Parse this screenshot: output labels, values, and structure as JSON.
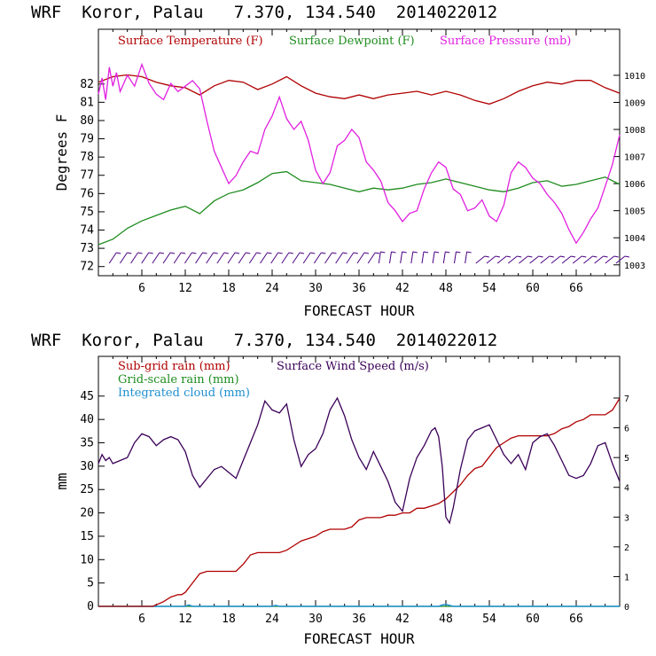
{
  "colors": {
    "temp": "#b00000",
    "dew": "#1e8c1e",
    "pres": "#e020e0",
    "subgrid": "#b00000",
    "gridscale": "#1e8c1e",
    "cloud": "#1f8fd0",
    "wind": "#3a0058",
    "barb": "#4b0082"
  },
  "chart_data": [
    {
      "type": "line",
      "header": "WRF  Koror, Palau   7.370, 134.540  2014022012",
      "xlabel": "FORECAST HOUR",
      "ylabel": "Degrees F",
      "xticks": [
        "6",
        "12",
        "18",
        "24",
        "30",
        "36",
        "42",
        "48",
        "54",
        "60",
        "66"
      ],
      "xlim": [
        0,
        72
      ],
      "yticks": [
        "72",
        "73",
        "74",
        "75",
        "76",
        "77",
        "78",
        "79",
        "80",
        "81",
        "82"
      ],
      "ylim": [
        71.5,
        85
      ],
      "y2ticks": [
        "1003",
        "1004",
        "1005",
        "1006",
        "1007",
        "1008",
        "1009",
        "1010"
      ],
      "y2lim": [
        1002.6,
        1011.7
      ],
      "legend": [
        "Surface Temperature (F)",
        "Surface Dewpoint (F)",
        "Surface Pressure (mb)"
      ],
      "series": [
        {
          "name": "Surface Temperature (F)",
          "x": [
            0,
            2,
            4,
            6,
            8,
            10,
            12,
            14,
            16,
            18,
            20,
            22,
            24,
            26,
            28,
            30,
            32,
            34,
            36,
            38,
            40,
            42,
            44,
            46,
            48,
            50,
            52,
            54,
            56,
            58,
            60,
            62,
            64,
            66,
            68,
            70,
            72
          ],
          "values": [
            82.1,
            82.4,
            82.5,
            82.4,
            82.1,
            81.9,
            81.8,
            81.4,
            81.9,
            82.2,
            82.1,
            81.7,
            82.0,
            82.4,
            81.9,
            81.5,
            81.3,
            81.2,
            81.4,
            81.2,
            81.4,
            81.5,
            81.6,
            81.4,
            81.6,
            81.4,
            81.1,
            80.9,
            81.2,
            81.6,
            81.9,
            82.1,
            82.0,
            82.2,
            82.2,
            81.8,
            81.5
          ]
        },
        {
          "name": "Surface Dewpoint (F)",
          "x": [
            0,
            2,
            4,
            6,
            8,
            10,
            12,
            14,
            16,
            18,
            20,
            22,
            24,
            26,
            28,
            30,
            32,
            34,
            36,
            38,
            40,
            42,
            44,
            46,
            48,
            50,
            52,
            54,
            56,
            58,
            60,
            62,
            64,
            66,
            68,
            70,
            72
          ],
          "values": [
            73.2,
            73.5,
            74.1,
            74.5,
            74.8,
            75.1,
            75.3,
            74.9,
            75.6,
            76.0,
            76.2,
            76.6,
            77.1,
            77.2,
            76.7,
            76.6,
            76.5,
            76.3,
            76.1,
            76.3,
            76.2,
            76.3,
            76.5,
            76.6,
            76.8,
            76.6,
            76.4,
            76.2,
            76.1,
            76.3,
            76.6,
            76.7,
            76.4,
            76.5,
            76.7,
            76.9,
            76.5
          ]
        },
        {
          "name": "Surface Pressure (mb)",
          "axis": "right",
          "x": [
            0,
            0.5,
            1,
            1.5,
            2,
            2.5,
            3,
            4,
            5,
            6,
            7,
            8,
            9,
            10,
            11,
            12,
            13,
            14,
            15,
            16,
            17,
            18,
            19,
            20,
            21,
            22,
            23,
            24,
            25,
            26,
            27,
            28,
            29,
            30,
            31,
            32,
            33,
            34,
            35,
            36,
            37,
            38,
            39,
            40,
            41,
            42,
            43,
            44,
            45,
            46,
            47,
            48,
            49,
            50,
            51,
            52,
            53,
            54,
            55,
            56,
            57,
            58,
            59,
            60,
            61,
            62,
            63,
            64,
            65,
            66,
            67,
            68,
            69,
            70,
            71,
            72
          ],
          "values": [
            1009.3,
            1009.9,
            1009.1,
            1010.3,
            1009.6,
            1010.1,
            1009.4,
            1010.0,
            1009.6,
            1010.4,
            1009.7,
            1009.3,
            1009.1,
            1009.7,
            1009.4,
            1009.6,
            1009.8,
            1009.5,
            1008.3,
            1007.2,
            1006.6,
            1006.0,
            1006.3,
            1006.8,
            1007.2,
            1007.1,
            1008.0,
            1008.5,
            1009.2,
            1008.4,
            1008.0,
            1008.3,
            1007.6,
            1006.5,
            1006.0,
            1006.4,
            1007.4,
            1007.6,
            1008.0,
            1007.7,
            1006.8,
            1006.5,
            1006.1,
            1005.3,
            1005.0,
            1004.6,
            1004.9,
            1005.0,
            1005.8,
            1006.4,
            1006.8,
            1006.6,
            1005.8,
            1005.6,
            1005.0,
            1005.1,
            1005.4,
            1004.8,
            1004.6,
            1005.2,
            1006.4,
            1006.8,
            1006.6,
            1006.2,
            1006.0,
            1005.6,
            1005.3,
            1004.9,
            1004.3,
            1003.8,
            1004.2,
            1004.7,
            1005.1,
            1005.9,
            1006.7,
            1007.8
          ]
        }
      ],
      "wind_barbs": {
        "x_start": 1.5,
        "x_end": 71.5,
        "count": 48
      }
    },
    {
      "type": "line",
      "header": "WRF  Koror, Palau   7.370, 134.540  2014022012",
      "xlabel": "FORECAST HOUR",
      "ylabel": "mm",
      "xticks": [
        "6",
        "12",
        "18",
        "24",
        "30",
        "36",
        "42",
        "48",
        "54",
        "60",
        "66"
      ],
      "xlim": [
        0,
        72
      ],
      "yticks": [
        "0",
        "5",
        "10",
        "15",
        "20",
        "25",
        "30",
        "35",
        "40",
        "45"
      ],
      "ylim": [
        0,
        53.5
      ],
      "y2ticks": [
        "0",
        "1",
        "2",
        "3",
        "4",
        "5",
        "6",
        "7"
      ],
      "y2lim": [
        0,
        8.4
      ],
      "legend": [
        "Sub-grid rain (mm)",
        "Surface Wind Speed (m/s)",
        "Grid-scale rain (mm)",
        "Integrated cloud (mm)"
      ],
      "series": [
        {
          "name": "Sub-grid rain (mm)",
          "x": [
            0,
            7.5,
            9,
            10,
            11,
            11.5,
            12,
            13,
            14,
            15,
            16,
            17,
            18,
            19,
            20,
            21,
            22,
            23,
            24,
            25,
            26,
            27,
            28,
            29,
            30,
            31,
            32,
            33,
            34,
            35,
            36,
            37,
            38,
            39,
            40,
            41,
            42,
            43,
            44,
            45,
            46,
            47,
            48,
            49,
            50,
            51,
            52,
            53,
            54,
            55,
            56,
            57,
            58,
            59,
            60,
            61,
            62,
            63,
            64,
            65,
            66,
            67,
            68,
            69,
            70,
            71,
            72
          ],
          "values": [
            0,
            0,
            1,
            2,
            2.5,
            2.5,
            3,
            5,
            7,
            7.5,
            7.5,
            7.5,
            7.5,
            7.5,
            9,
            11,
            11.5,
            11.5,
            11.5,
            11.5,
            12,
            13,
            14,
            14.5,
            15,
            16,
            16.5,
            16.5,
            16.5,
            17,
            18.5,
            19,
            19,
            19,
            19.5,
            19.5,
            20,
            20,
            21,
            21,
            21.5,
            22,
            23,
            24.5,
            26,
            28,
            29.5,
            30,
            32,
            34,
            35,
            36,
            36.5,
            36.5,
            36.5,
            36.5,
            36.5,
            37,
            38,
            38.5,
            39.5,
            40,
            41,
            41,
            41,
            42,
            44.5
          ]
        },
        {
          "name": "Surface Wind Speed (m/s)",
          "axis": "right",
          "x": [
            0,
            0.5,
            1,
            1.5,
            2,
            3,
            4,
            5,
            6,
            7,
            8,
            9,
            10,
            11,
            12,
            13,
            14,
            15,
            16,
            17,
            18,
            19,
            20,
            21,
            22,
            23,
            24,
            25,
            26,
            27,
            28,
            29,
            30,
            31,
            32,
            33,
            34,
            35,
            36,
            37,
            38,
            39,
            40,
            41,
            42,
            43,
            44,
            45,
            46,
            46.5,
            47,
            47.5,
            48,
            48.5,
            49,
            50,
            51,
            52,
            53,
            54,
            55,
            56,
            57,
            58,
            59,
            60,
            61,
            62,
            63,
            64,
            65,
            66,
            67,
            68,
            69,
            70,
            71,
            72
          ],
          "values": [
            4.8,
            5.1,
            4.9,
            5.0,
            4.8,
            4.9,
            5.0,
            5.5,
            5.8,
            5.7,
            5.4,
            5.6,
            5.7,
            5.6,
            5.2,
            4.4,
            4.0,
            4.3,
            4.6,
            4.7,
            4.5,
            4.3,
            4.9,
            5.5,
            6.1,
            6.9,
            6.6,
            6.5,
            6.8,
            5.6,
            4.7,
            5.1,
            5.3,
            5.8,
            6.6,
            7.0,
            6.4,
            5.6,
            5.0,
            4.6,
            5.2,
            4.7,
            4.2,
            3.5,
            3.2,
            4.3,
            5.0,
            5.4,
            5.9,
            6.0,
            5.7,
            4.7,
            3.0,
            2.8,
            3.3,
            4.6,
            5.6,
            5.9,
            6.0,
            6.1,
            5.6,
            5.1,
            4.8,
            5.1,
            4.6,
            5.5,
            5.7,
            5.8,
            5.4,
            4.9,
            4.4,
            4.3,
            4.4,
            4.8,
            5.4,
            5.5,
            4.8,
            4.2
          ]
        },
        {
          "name": "Grid-scale rain (mm)",
          "x": [
            0,
            72
          ],
          "values": [
            0,
            0
          ]
        },
        {
          "name": "Integrated cloud (mm)",
          "x": [
            0,
            12,
            12.5,
            13,
            14,
            24,
            24.5,
            25,
            47,
            47.5,
            48,
            48.5,
            49,
            72
          ],
          "values": [
            0,
            0,
            0.3,
            0,
            0,
            0,
            0.2,
            0,
            0,
            0.3,
            0.4,
            0.2,
            0,
            0
          ]
        }
      ]
    }
  ]
}
